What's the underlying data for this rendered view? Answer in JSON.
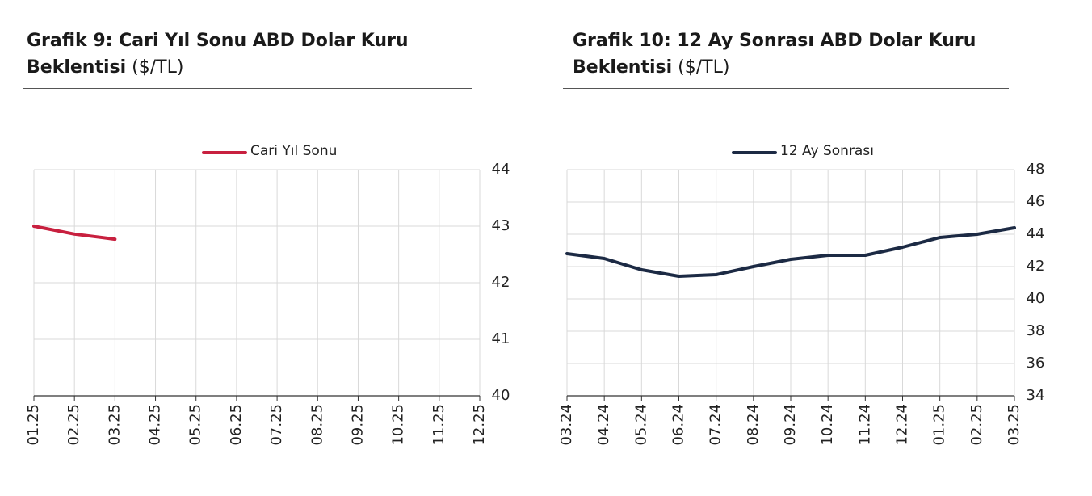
{
  "chart_data": [
    {
      "type": "line",
      "title": "Grafik 9: Cari Yıl Sonu ABD Dolar Kuru Beklentisi",
      "title_unit": "($/TL)",
      "categories": [
        "01.25",
        "02.25",
        "03.25",
        "04.25",
        "05.25",
        "06.25",
        "07.25",
        "08.25",
        "09.25",
        "10.25",
        "11.25",
        "12.25"
      ],
      "series": [
        {
          "name": "Cari Yıl Sonu",
          "color": "#c8203f",
          "values": [
            43.0,
            42.86,
            42.77,
            null,
            null,
            null,
            null,
            null,
            null,
            null,
            null,
            null
          ]
        }
      ],
      "ylim": [
        40,
        44
      ],
      "yticks": [
        40,
        41,
        42,
        43,
        44
      ],
      "grid": true,
      "y_axis_side": "right",
      "legend": "top"
    },
    {
      "type": "line",
      "title": "Grafik 10: 12 Ay Sonrası ABD Dolar Kuru Beklentisi",
      "title_unit": "($/TL)",
      "categories": [
        "03.24",
        "04.24",
        "05.24",
        "06.24",
        "07.24",
        "08.24",
        "09.24",
        "10.24",
        "11.24",
        "12.24",
        "01.25",
        "02.25",
        "03.25"
      ],
      "series": [
        {
          "name": "12 Ay Sonrası",
          "color": "#1c2a44",
          "values": [
            42.8,
            42.5,
            41.8,
            41.4,
            41.5,
            42.0,
            42.45,
            42.7,
            42.7,
            43.2,
            43.8,
            44.0,
            44.4
          ]
        }
      ],
      "ylim": [
        34,
        48
      ],
      "yticks": [
        34,
        36,
        38,
        40,
        42,
        44,
        46,
        48
      ],
      "grid": true,
      "y_axis_side": "right",
      "legend": "top"
    }
  ]
}
